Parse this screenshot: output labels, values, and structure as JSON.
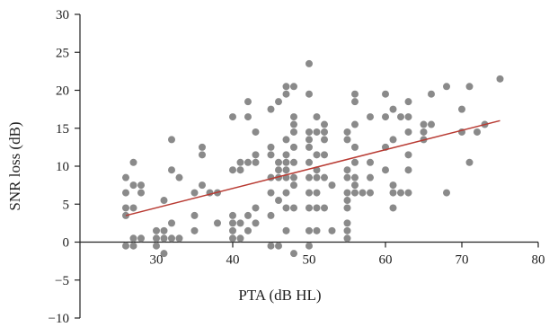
{
  "chart_data": {
    "type": "scatter",
    "xlabel": "PTA (dB HL)",
    "ylabel": "SNR loss (dB)",
    "xlim": [
      20,
      80
    ],
    "ylim": [
      -10,
      30
    ],
    "x_ticks": [
      30,
      40,
      50,
      60,
      70,
      80
    ],
    "y_ticks": [
      -10,
      -5,
      0,
      5,
      10,
      15,
      20,
      25,
      30
    ],
    "grid": false,
    "legend": "none",
    "point_color": "#8a8a8a",
    "trend_color": "#b83a32",
    "trendline": {
      "x": [
        26,
        75
      ],
      "y": [
        3.5,
        16.0
      ]
    },
    "series": [
      {
        "points": [
          [
            26,
            8.5
          ],
          [
            26,
            6.5
          ],
          [
            26,
            4.5
          ],
          [
            26,
            3.5
          ],
          [
            26,
            -0.5
          ],
          [
            27,
            10.5
          ],
          [
            27,
            7.5
          ],
          [
            27,
            4.5
          ],
          [
            27,
            0.5
          ],
          [
            27,
            -0.5
          ],
          [
            28,
            7.5
          ],
          [
            28,
            6.5
          ],
          [
            28,
            0.5
          ],
          [
            30,
            1.5
          ],
          [
            30,
            0.5
          ],
          [
            30,
            -0.5
          ],
          [
            31,
            5.5
          ],
          [
            31,
            1.5
          ],
          [
            31,
            0.5
          ],
          [
            31,
            -1.5
          ],
          [
            32,
            13.5
          ],
          [
            32,
            9.5
          ],
          [
            32,
            2.5
          ],
          [
            32,
            0.5
          ],
          [
            33,
            8.5
          ],
          [
            33,
            0.5
          ],
          [
            35,
            6.5
          ],
          [
            35,
            3.5
          ],
          [
            35,
            1.5
          ],
          [
            36,
            12.5
          ],
          [
            36,
            11.5
          ],
          [
            36,
            7.5
          ],
          [
            37,
            6.5
          ],
          [
            38,
            6.5
          ],
          [
            38,
            2.5
          ],
          [
            40,
            16.5
          ],
          [
            40,
            9.5
          ],
          [
            40,
            3.5
          ],
          [
            40,
            2.5
          ],
          [
            40,
            1.5
          ],
          [
            40,
            0.5
          ],
          [
            41,
            10.5
          ],
          [
            41,
            9.5
          ],
          [
            41,
            2.5
          ],
          [
            41,
            0.5
          ],
          [
            42,
            18.5
          ],
          [
            42,
            16.5
          ],
          [
            42,
            10.5
          ],
          [
            42,
            3.5
          ],
          [
            42,
            1.5
          ],
          [
            43,
            14.5
          ],
          [
            43,
            11.5
          ],
          [
            43,
            10.5
          ],
          [
            43,
            4.5
          ],
          [
            43,
            2.5
          ],
          [
            45,
            17.5
          ],
          [
            45,
            12.5
          ],
          [
            45,
            11.5
          ],
          [
            45,
            8.5
          ],
          [
            45,
            6.5
          ],
          [
            45,
            3.5
          ],
          [
            45,
            -0.5
          ],
          [
            46,
            18.5
          ],
          [
            46,
            10.5
          ],
          [
            46,
            9.5
          ],
          [
            46,
            8.5
          ],
          [
            46,
            5.5
          ],
          [
            46,
            -0.5
          ],
          [
            47,
            20.5
          ],
          [
            47,
            19.5
          ],
          [
            47,
            13.5
          ],
          [
            47,
            11.5
          ],
          [
            47,
            10.5
          ],
          [
            47,
            9.5
          ],
          [
            47,
            8.5
          ],
          [
            47,
            6.5
          ],
          [
            47,
            4.5
          ],
          [
            47,
            1.5
          ],
          [
            48,
            20.5
          ],
          [
            48,
            16.5
          ],
          [
            48,
            15.5
          ],
          [
            48,
            14.5
          ],
          [
            48,
            12.5
          ],
          [
            48,
            10.5
          ],
          [
            48,
            8.5
          ],
          [
            48,
            7.5
          ],
          [
            48,
            4.5
          ],
          [
            48,
            -1.5
          ],
          [
            50,
            23.5
          ],
          [
            50,
            19.5
          ],
          [
            50,
            14.5
          ],
          [
            50,
            13.5
          ],
          [
            50,
            12.5
          ],
          [
            50,
            10.5
          ],
          [
            50,
            8.5
          ],
          [
            50,
            6.5
          ],
          [
            50,
            4.5
          ],
          [
            50,
            1.5
          ],
          [
            50,
            -0.5
          ],
          [
            51,
            16.5
          ],
          [
            51,
            14.5
          ],
          [
            51,
            11.5
          ],
          [
            51,
            9.5
          ],
          [
            51,
            8.5
          ],
          [
            51,
            6.5
          ],
          [
            51,
            4.5
          ],
          [
            51,
            1.5
          ],
          [
            52,
            15.5
          ],
          [
            52,
            14.5
          ],
          [
            52,
            13.5
          ],
          [
            52,
            11.5
          ],
          [
            52,
            8.5
          ],
          [
            52,
            4.5
          ],
          [
            53,
            7.5
          ],
          [
            53,
            1.5
          ],
          [
            55,
            14.5
          ],
          [
            55,
            13.5
          ],
          [
            55,
            9.5
          ],
          [
            55,
            8.5
          ],
          [
            55,
            6.5
          ],
          [
            55,
            5.5
          ],
          [
            55,
            4.5
          ],
          [
            55,
            2.5
          ],
          [
            55,
            1.5
          ],
          [
            55,
            0.5
          ],
          [
            56,
            19.5
          ],
          [
            56,
            18.5
          ],
          [
            56,
            15.5
          ],
          [
            56,
            12.5
          ],
          [
            56,
            10.5
          ],
          [
            56,
            8.5
          ],
          [
            56,
            7.5
          ],
          [
            56,
            6.5
          ],
          [
            57,
            6.5
          ],
          [
            58,
            16.5
          ],
          [
            58,
            10.5
          ],
          [
            58,
            8.5
          ],
          [
            58,
            6.5
          ],
          [
            60,
            19.5
          ],
          [
            60,
            16.5
          ],
          [
            60,
            12.5
          ],
          [
            60,
            9.5
          ],
          [
            61,
            17.5
          ],
          [
            61,
            13.5
          ],
          [
            61,
            7.5
          ],
          [
            61,
            6.5
          ],
          [
            61,
            4.5
          ],
          [
            62,
            16.5
          ],
          [
            62,
            6.5
          ],
          [
            63,
            18.5
          ],
          [
            63,
            16.5
          ],
          [
            63,
            14.5
          ],
          [
            63,
            11.5
          ],
          [
            63,
            9.5
          ],
          [
            63,
            6.5
          ],
          [
            65,
            15.5
          ],
          [
            65,
            14.5
          ],
          [
            65,
            13.5
          ],
          [
            66,
            19.5
          ],
          [
            66,
            15.5
          ],
          [
            68,
            20.5
          ],
          [
            68,
            6.5
          ],
          [
            70,
            17.5
          ],
          [
            70,
            14.5
          ],
          [
            71,
            20.5
          ],
          [
            71,
            10.5
          ],
          [
            72,
            14.5
          ],
          [
            73,
            15.5
          ],
          [
            75,
            21.5
          ]
        ]
      }
    ]
  }
}
